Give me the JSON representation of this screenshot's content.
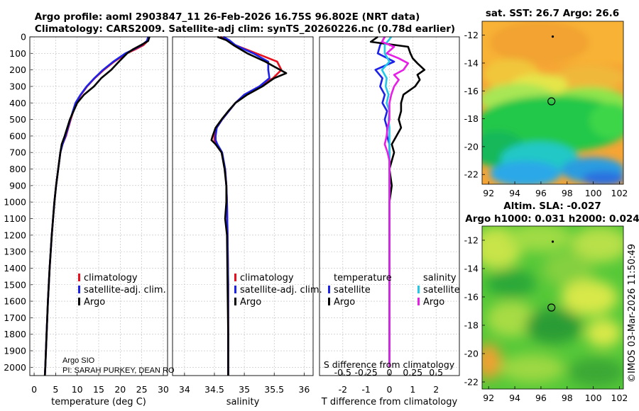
{
  "title_line1": "Argo profile: aoml 2903847_11 26-Feb-2026 16.75S 96.802E (NRT data)",
  "title_line2": "Climatology: CARS2009. Satellite-adj clim: synTS_20260226.nc (0.78d earlier)",
  "depth_ticks": [
    "0",
    "100",
    "200",
    "300",
    "400",
    "500",
    "600",
    "700",
    "800",
    "900",
    "1000",
    "1100",
    "1200",
    "1300",
    "1400",
    "1500",
    "1600",
    "1700",
    "1800",
    "1900",
    "2000"
  ],
  "colors": {
    "climatology": "#e8101e",
    "satellite_adj": "#1c22e8",
    "argo": "#000000",
    "satellite_salt": "#22c8e8",
    "argo_salt": "#e61ee6"
  },
  "chart_data": [
    {
      "type": "line",
      "panel": "temperature",
      "xlabel": "temperature (deg C)",
      "xlim": [
        -1,
        31
      ],
      "ylim": [
        2050,
        0
      ],
      "xticks": [
        0,
        5,
        10,
        15,
        20,
        25,
        30
      ],
      "xtick_labels": [
        "0",
        "5",
        "10",
        "15",
        "20",
        "25",
        "30"
      ],
      "series": [
        {
          "name": "climatology",
          "depth": [
            0,
            25,
            50,
            75,
            100,
            150,
            200,
            250,
            300,
            350,
            400,
            500,
            600,
            650,
            700,
            800,
            900,
            1000,
            1200,
            1400,
            1600,
            1800,
            2000,
            2050
          ],
          "values": [
            26.6,
            26.4,
            25.4,
            23.6,
            21.5,
            18.6,
            16.2,
            14.1,
            12.3,
            10.9,
            9.7,
            8.5,
            7.4,
            6.6,
            6.1,
            5.6,
            5.1,
            4.7,
            4.1,
            3.6,
            3.2,
            2.9,
            2.6,
            2.5
          ]
        },
        {
          "name": "satellite-adj. clim.",
          "depth": [
            0,
            25,
            50,
            75,
            100,
            150,
            200,
            250,
            300,
            350,
            400,
            500,
            600,
            650,
            700,
            800,
            900,
            1000,
            1200,
            1400,
            1600,
            1800,
            2000,
            2050
          ],
          "values": [
            26.5,
            26.2,
            25.0,
            23.2,
            21.2,
            18.4,
            16.0,
            14.0,
            12.2,
            10.8,
            9.6,
            8.4,
            7.3,
            6.6,
            6.1,
            5.6,
            5.1,
            4.7,
            4.1,
            3.6,
            3.2,
            2.9,
            2.6,
            2.5
          ]
        },
        {
          "name": "Argo",
          "depth": [
            0,
            25,
            50,
            75,
            100,
            150,
            200,
            250,
            300,
            350,
            400,
            500,
            600,
            650,
            700,
            800,
            900,
            1000,
            1200,
            1400,
            1600,
            1800,
            2000,
            2050
          ],
          "values": [
            26.8,
            26.5,
            24.8,
            23.0,
            21.6,
            19.7,
            17.9,
            15.6,
            13.9,
            11.6,
            10.0,
            8.3,
            7.1,
            6.4,
            6.1,
            5.6,
            5.1,
            4.7,
            4.1,
            3.6,
            3.2,
            2.9,
            2.6,
            2.5
          ]
        }
      ],
      "legend": [
        "climatology",
        "satellite-adj. clim.",
        "Argo"
      ],
      "annotations": [
        "Argo SIO",
        "PI: SARAH PURKEY, DEAN RO"
      ]
    },
    {
      "type": "line",
      "panel": "salinity",
      "xlabel": "salinity",
      "xlim": [
        33.8,
        36.15
      ],
      "ylim": [
        2050,
        0
      ],
      "xticks": [
        34,
        34.5,
        35,
        35.5,
        36
      ],
      "xtick_labels": [
        "34",
        "34.5",
        "35",
        "35.5",
        "36"
      ],
      "series": [
        {
          "name": "climatology",
          "depth": [
            0,
            20,
            50,
            100,
            150,
            200,
            250,
            300,
            350,
            400,
            450,
            500,
            550,
            600,
            625,
            650,
            700,
            800,
            900,
            1000,
            1200,
            1500,
            1800,
            2000,
            2050
          ],
          "values": [
            34.6,
            34.72,
            34.85,
            35.2,
            35.55,
            35.62,
            35.48,
            35.25,
            35.0,
            34.85,
            34.74,
            34.63,
            34.54,
            34.5,
            34.5,
            34.54,
            34.62,
            34.68,
            34.7,
            34.71,
            34.72,
            34.73,
            34.73,
            34.73,
            34.73
          ]
        },
        {
          "name": "satellite-adj. clim.",
          "depth": [
            0,
            20,
            50,
            100,
            150,
            200,
            250,
            300,
            350,
            400,
            450,
            500,
            550,
            600,
            625,
            650,
            700,
            800,
            900,
            1000,
            1200,
            1500,
            1800,
            2000,
            2050
          ],
          "values": [
            34.65,
            34.75,
            34.85,
            35.15,
            35.4,
            35.4,
            35.42,
            35.25,
            35.0,
            34.85,
            34.74,
            34.63,
            34.54,
            34.52,
            34.52,
            34.55,
            34.63,
            34.68,
            34.7,
            34.71,
            34.72,
            34.73,
            34.73,
            34.73,
            34.73
          ]
        },
        {
          "name": "Argo",
          "depth": [
            0,
            20,
            50,
            100,
            150,
            180,
            200,
            220,
            250,
            300,
            350,
            400,
            450,
            500,
            550,
            600,
            625,
            650,
            700,
            800,
            900,
            1000,
            1100,
            1200,
            1500,
            1800,
            2000,
            2050
          ],
          "values": [
            34.55,
            34.7,
            34.82,
            35.05,
            35.35,
            35.5,
            35.6,
            35.7,
            35.5,
            35.3,
            35.05,
            34.85,
            34.73,
            34.62,
            34.52,
            34.47,
            34.45,
            34.52,
            34.62,
            34.67,
            34.7,
            34.7,
            34.68,
            34.71,
            34.72,
            34.73,
            34.73,
            34.73
          ]
        }
      ],
      "legend": [
        "climatology",
        "satellite-adj. clim.",
        "Argo"
      ]
    },
    {
      "type": "line",
      "panel": "difference",
      "xlabel": "T difference from climatology",
      "xlim": [
        -3,
        3
      ],
      "ylim": [
        2050,
        0
      ],
      "xticks": [
        -2,
        -1,
        0,
        1,
        2
      ],
      "xtick_labels": [
        "-2",
        "-1",
        "0",
        "1",
        "2"
      ],
      "secondary_label": "S difference from climatology",
      "secondary_tick_labels": [
        "-0.5",
        "-0.25",
        "0",
        "0.25",
        "0.5"
      ],
      "secondary_xticks": [
        -0.5,
        -0.25,
        0,
        0.25,
        0.5
      ],
      "series": [
        {
          "name": "temperature satellite",
          "depth": [
            0,
            50,
            100,
            150,
            200,
            250,
            300,
            350,
            400,
            450,
            500,
            550,
            600,
            650,
            700,
            800,
            1000,
            1200,
            1500,
            1800,
            2000
          ],
          "values": [
            -0.2,
            -0.4,
            -0.5,
            0.2,
            -0.6,
            -0.3,
            -0.4,
            -0.2,
            -0.3,
            -0.1,
            -0.2,
            -0.1,
            -0.1,
            0,
            0,
            0,
            0,
            0,
            0,
            0,
            0
          ]
        },
        {
          "name": "temperature Argo",
          "depth": [
            0,
            30,
            60,
            100,
            130,
            160,
            200,
            230,
            260,
            300,
            350,
            400,
            450,
            500,
            550,
            600,
            650,
            700,
            750,
            800,
            900,
            1000,
            1200,
            1500,
            1800,
            2000
          ],
          "values": [
            -0.5,
            -0.8,
            0.8,
            0.9,
            1.0,
            1.2,
            1.5,
            1.2,
            1.3,
            1.1,
            0.6,
            0.5,
            0.5,
            0.4,
            0.5,
            0.3,
            0.1,
            0.2,
            0.1,
            0,
            0.1,
            0,
            0,
            0,
            0,
            0
          ]
        },
        {
          "name": "salinity satellite",
          "depth": [
            0,
            50,
            100,
            150,
            200,
            250,
            300,
            350,
            400,
            450,
            500,
            550,
            600,
            650,
            700,
            800,
            1000,
            1200,
            1500,
            1800,
            2000
          ],
          "values": [
            0.02,
            -0.05,
            -0.05,
            0,
            -0.08,
            -0.03,
            -0.04,
            -0.01,
            -0.03,
            0,
            -0.01,
            0,
            0,
            0,
            0,
            0,
            0,
            0,
            0,
            0,
            0
          ]
        },
        {
          "name": "salinity Argo",
          "depth": [
            0,
            30,
            60,
            100,
            130,
            160,
            200,
            230,
            260,
            300,
            350,
            400,
            450,
            500,
            550,
            600,
            650,
            700,
            750,
            800,
            900,
            1000,
            1200,
            1500,
            1800,
            2000
          ],
          "values": [
            -0.05,
            -0.08,
            0.05,
            -0.03,
            0.1,
            0.2,
            0.15,
            0.05,
            0.1,
            0.05,
            0.02,
            0,
            0,
            0,
            -0.02,
            -0.03,
            -0.05,
            -0.02,
            0,
            0,
            0,
            0,
            0,
            0,
            0,
            0
          ]
        }
      ],
      "legend_temperature_title": "temperature",
      "legend_salinity_title": "salinity",
      "legend": [
        "satellite",
        "Argo"
      ]
    },
    {
      "type": "heatmap",
      "panel": "sst",
      "title": "sat. SST: 26.7 Argo: 26.6",
      "xlim": [
        91.5,
        102.3
      ],
      "ylim": [
        -22.7,
        -11
      ],
      "xticks": [
        92,
        94,
        96,
        98,
        100,
        102
      ],
      "yticks": [
        -12,
        -14,
        -16,
        -18,
        -20,
        -22
      ],
      "argo_position": [
        96.8,
        -16.75
      ],
      "previous_position": [
        96.9,
        -12.1
      ]
    },
    {
      "type": "heatmap",
      "panel": "sla",
      "title": "Altim. SLA: -0.027",
      "subtitle": "Argo h1000: 0.031 h2000: 0.024",
      "xlim": [
        91.5,
        102.3
      ],
      "ylim": [
        -22.5,
        -11
      ],
      "xticks": [
        92,
        94,
        96,
        98,
        100,
        102
      ],
      "yticks": [
        -12,
        -14,
        -16,
        -18,
        -20,
        -22
      ],
      "argo_position": [
        96.8,
        -16.75
      ],
      "previous_position": [
        96.9,
        -12.1
      ]
    }
  ],
  "credit": "©IMOS 03-Mar-2026 11:50:49"
}
